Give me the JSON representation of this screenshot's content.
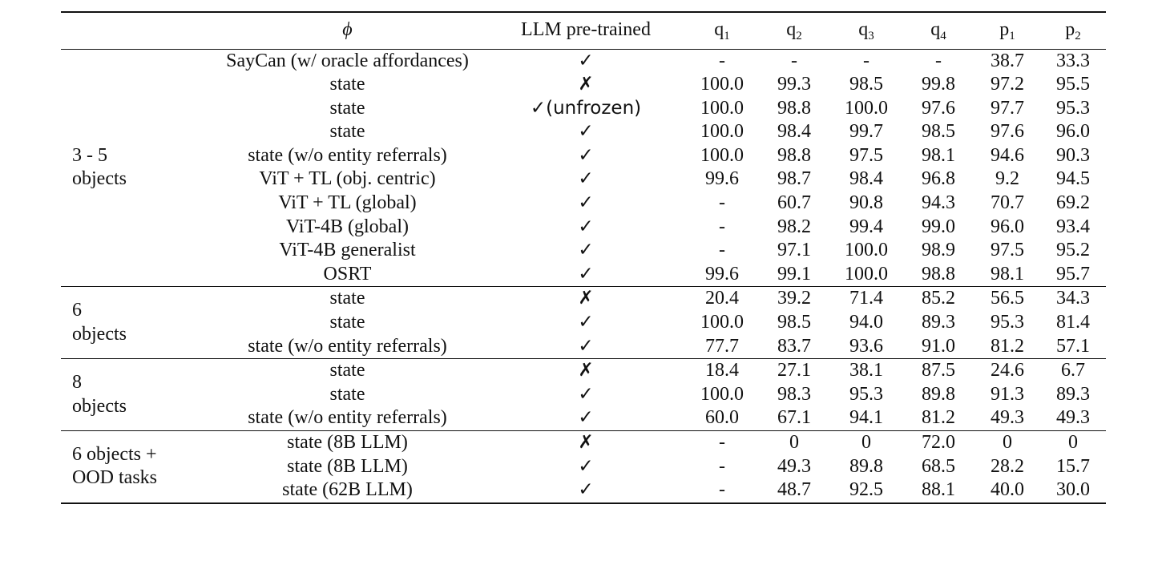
{
  "table": {
    "columns": {
      "group": "",
      "phi": "ϕ",
      "llm": "LLM pre-trained",
      "q1": {
        "base": "q",
        "sub": "1"
      },
      "q2": {
        "base": "q",
        "sub": "2"
      },
      "q3": {
        "base": "q",
        "sub": "3"
      },
      "q4": {
        "base": "q",
        "sub": "4"
      },
      "p1": {
        "base": "p",
        "sub": "1"
      },
      "p2": {
        "base": "p",
        "sub": "2"
      }
    },
    "sections": [
      {
        "group": [
          "3 - 5",
          "objects"
        ],
        "rows": [
          {
            "phi": "SayCan (w/ oracle affordances)",
            "llm": "✓",
            "q1": "-",
            "q2": "-",
            "q3": "-",
            "q4": "-",
            "p1": "38.7",
            "p2": "33.3"
          },
          {
            "phi": "state",
            "llm": "✗",
            "q1": "100.0",
            "q2": "99.3",
            "q3": "98.5",
            "q4": "99.8",
            "p1": "97.2",
            "p2": "95.5"
          },
          {
            "phi": "state",
            "llm": "✓(unfrozen)",
            "q1": "100.0",
            "q2": "98.8",
            "q3": "100.0",
            "q4": "97.6",
            "p1": "97.7",
            "p2": "95.3"
          },
          {
            "phi": "state",
            "llm": "✓",
            "q1": "100.0",
            "q2": "98.4",
            "q3": "99.7",
            "q4": "98.5",
            "p1": "97.6",
            "p2": "96.0"
          },
          {
            "phi": "state (w/o entity referrals)",
            "llm": "✓",
            "q1": "100.0",
            "q2": "98.8",
            "q3": "97.5",
            "q4": "98.1",
            "p1": "94.6",
            "p2": "90.3"
          },
          {
            "phi": "ViT + TL (obj. centric)",
            "llm": "✓",
            "q1": "99.6",
            "q2": "98.7",
            "q3": "98.4",
            "q4": "96.8",
            "p1": "9.2",
            "p2": "94.5"
          },
          {
            "phi": "ViT + TL (global)",
            "llm": "✓",
            "q1": "-",
            "q2": "60.7",
            "q3": "90.8",
            "q4": "94.3",
            "p1": "70.7",
            "p2": "69.2"
          },
          {
            "phi": "ViT-4B (global)",
            "llm": "✓",
            "q1": "-",
            "q2": "98.2",
            "q3": "99.4",
            "q4": "99.0",
            "p1": "96.0",
            "p2": "93.4"
          },
          {
            "phi": "ViT-4B generalist",
            "llm": "✓",
            "q1": "-",
            "q2": "97.1",
            "q3": "100.0",
            "q4": "98.9",
            "p1": "97.5",
            "p2": "95.2"
          },
          {
            "phi": "OSRT",
            "llm": "✓",
            "q1": "99.6",
            "q2": "99.1",
            "q3": "100.0",
            "q4": "98.8",
            "p1": "98.1",
            "p2": "95.7"
          }
        ]
      },
      {
        "group": [
          "6",
          "objects"
        ],
        "rows": [
          {
            "phi": "state",
            "llm": "✗",
            "q1": "20.4",
            "q2": "39.2",
            "q3": "71.4",
            "q4": "85.2",
            "p1": "56.5",
            "p2": "34.3"
          },
          {
            "phi": "state",
            "llm": "✓",
            "q1": "100.0",
            "q2": "98.5",
            "q3": "94.0",
            "q4": "89.3",
            "p1": "95.3",
            "p2": "81.4"
          },
          {
            "phi": "state (w/o entity referrals)",
            "llm": "✓",
            "q1": "77.7",
            "q2": "83.7",
            "q3": "93.6",
            "q4": "91.0",
            "p1": "81.2",
            "p2": "57.1"
          }
        ]
      },
      {
        "group": [
          "8",
          "objects"
        ],
        "rows": [
          {
            "phi": "state",
            "llm": "✗",
            "q1": "18.4",
            "q2": "27.1",
            "q3": "38.1",
            "q4": "87.5",
            "p1": "24.6",
            "p2": "6.7"
          },
          {
            "phi": "state",
            "llm": "✓",
            "q1": "100.0",
            "q2": "98.3",
            "q3": "95.3",
            "q4": "89.8",
            "p1": "91.3",
            "p2": "89.3"
          },
          {
            "phi": "state (w/o entity referrals)",
            "llm": "✓",
            "q1": "60.0",
            "q2": "67.1",
            "q3": "94.1",
            "q4": "81.2",
            "p1": "49.3",
            "p2": "49.3"
          }
        ]
      },
      {
        "group": [
          "6 objects +",
          "OOD tasks"
        ],
        "rows": [
          {
            "phi": "state (8B LLM)",
            "llm": "✗",
            "q1": "-",
            "q2": "0",
            "q3": "0",
            "q4": "72.0",
            "p1": "0",
            "p2": "0"
          },
          {
            "phi": "state (8B LLM)",
            "llm": "✓",
            "q1": "-",
            "q2": "49.3",
            "q3": "89.8",
            "q4": "68.5",
            "p1": "28.2",
            "p2": "15.7"
          },
          {
            "phi": "state (62B LLM)",
            "llm": "✓",
            "q1": "-",
            "q2": "48.7",
            "q3": "92.5",
            "q4": "88.1",
            "p1": "40.0",
            "p2": "30.0"
          }
        ]
      }
    ]
  }
}
